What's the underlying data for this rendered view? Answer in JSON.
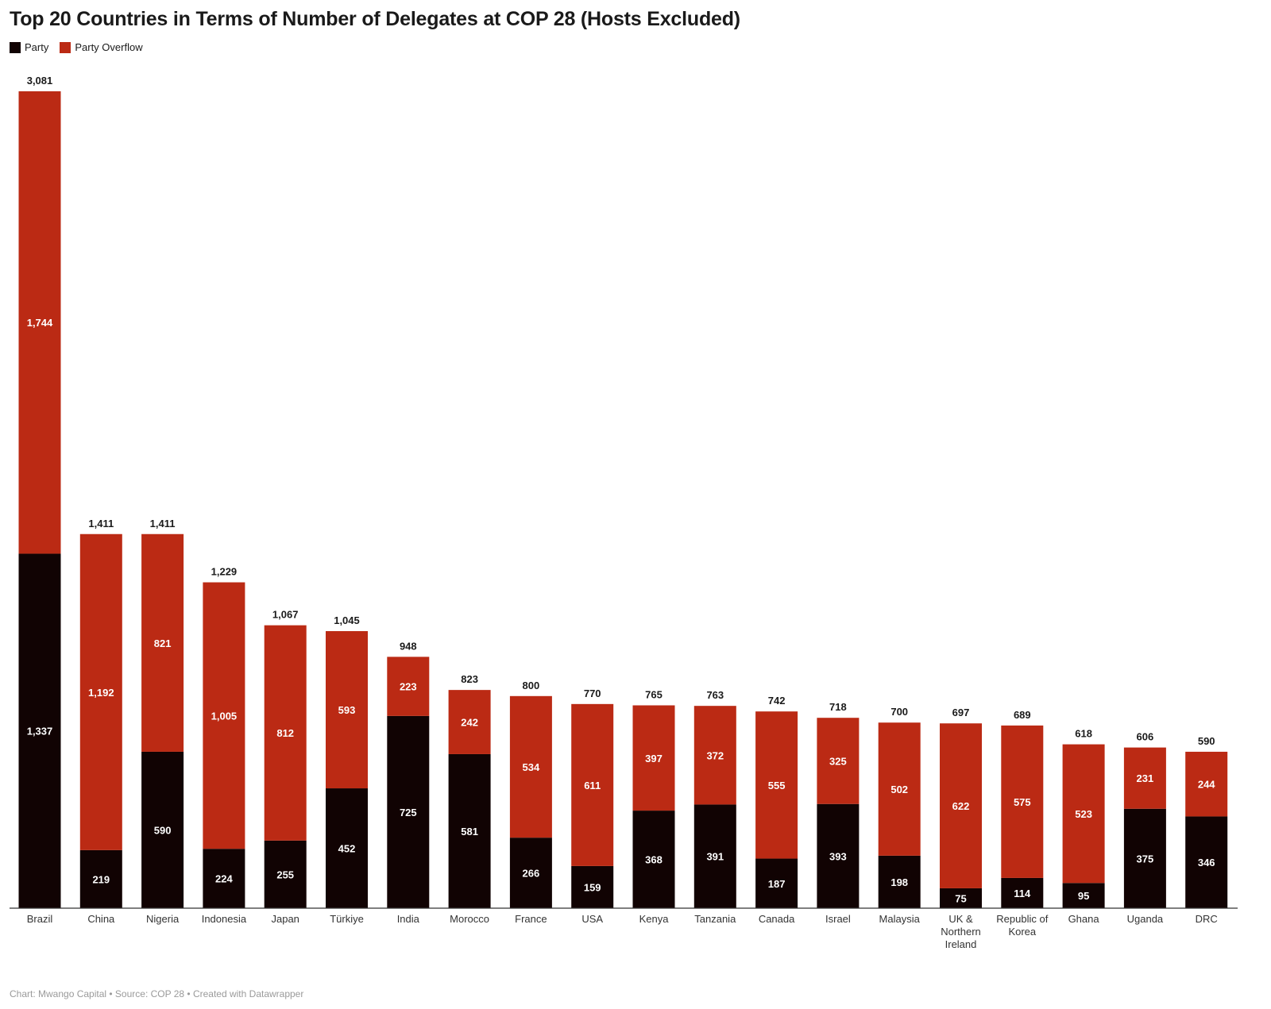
{
  "colors": {
    "party": "#110303",
    "party_overflow": "#bb2a14",
    "axis": "#333333"
  },
  "footer_text": "Chart: Mwango Capital • Source: COP 28 • Created with Datawrapper",
  "chart_data": {
    "type": "bar",
    "stacked": true,
    "title": "Top 20 Countries in Terms of Number of Delegates at COP 28 (Hosts Excluded)",
    "xlabel": "",
    "ylabel": "",
    "ylim": [
      0,
      3081
    ],
    "grid": false,
    "legend": "top-left",
    "categories": [
      "Brazil",
      "China",
      "Nigeria",
      "Indonesia",
      "Japan",
      "Türkiye",
      "India",
      "Morocco",
      "France",
      "USA",
      "Kenya",
      "Tanzania",
      "Canada",
      "Israel",
      "Malaysia",
      "UK & Northern Ireland",
      "Republic of Korea",
      "Ghana",
      "Uganda",
      "DRC"
    ],
    "category_lines": [
      [
        "Brazil"
      ],
      [
        "China"
      ],
      [
        "Nigeria"
      ],
      [
        "Indonesia"
      ],
      [
        "Japan"
      ],
      [
        "Türkiye"
      ],
      [
        "India"
      ],
      [
        "Morocco"
      ],
      [
        "France"
      ],
      [
        "USA"
      ],
      [
        "Kenya"
      ],
      [
        "Tanzania"
      ],
      [
        "Canada"
      ],
      [
        "Israel"
      ],
      [
        "Malaysia"
      ],
      [
        "UK &",
        "Northern",
        "Ireland"
      ],
      [
        "Republic of",
        "Korea"
      ],
      [
        "Ghana"
      ],
      [
        "Uganda"
      ],
      [
        "DRC"
      ]
    ],
    "series": [
      {
        "name": "Party",
        "values": [
          1337,
          219,
          590,
          224,
          255,
          452,
          725,
          581,
          266,
          159,
          368,
          391,
          187,
          393,
          198,
          75,
          114,
          95,
          375,
          346
        ],
        "labels": [
          "1,337",
          "219",
          "590",
          "224",
          "255",
          "452",
          "725",
          "581",
          "266",
          "159",
          "368",
          "391",
          "187",
          "393",
          "198",
          "75",
          "114",
          "95",
          "375",
          "346"
        ]
      },
      {
        "name": "Party Overflow",
        "values": [
          1744,
          1192,
          821,
          1005,
          812,
          593,
          223,
          242,
          534,
          611,
          397,
          372,
          555,
          325,
          502,
          622,
          575,
          523,
          231,
          244
        ],
        "labels": [
          "1,744",
          "1,192",
          "821",
          "1,005",
          "812",
          "593",
          "223",
          "242",
          "534",
          "611",
          "397",
          "372",
          "555",
          "325",
          "502",
          "622",
          "575",
          "523",
          "231",
          "244"
        ]
      }
    ],
    "totals": [
      3081,
      1411,
      1411,
      1229,
      1067,
      1045,
      948,
      823,
      800,
      770,
      765,
      763,
      742,
      718,
      700,
      697,
      689,
      618,
      606,
      590
    ],
    "total_labels": [
      "3,081",
      "1,411",
      "1,411",
      "1,229",
      "1,067",
      "1,045",
      "948",
      "823",
      "800",
      "770",
      "765",
      "763",
      "742",
      "718",
      "700",
      "697",
      "689",
      "618",
      "606",
      "590"
    ]
  }
}
